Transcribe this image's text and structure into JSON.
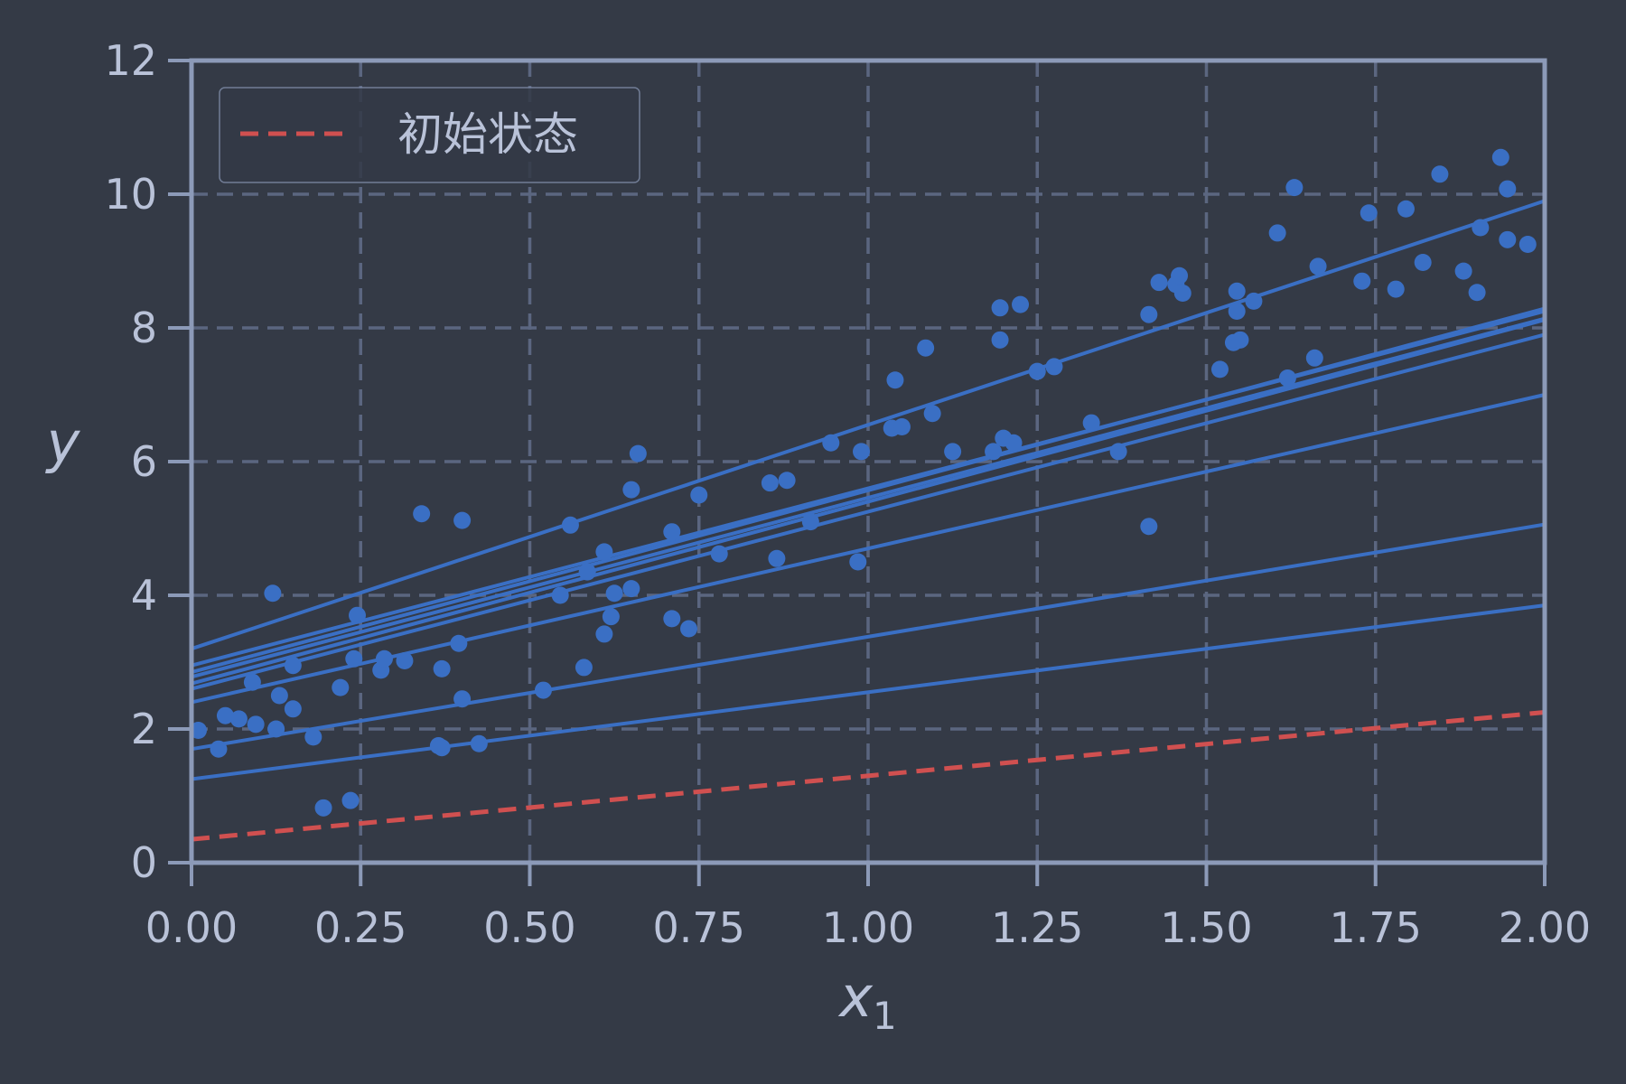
{
  "chart_data": {
    "type": "scatter",
    "title": "",
    "xlabel": "x",
    "xlabel_subscript": "1",
    "ylabel": "y",
    "xlim": [
      0,
      2
    ],
    "ylim": [
      0,
      12
    ],
    "grid": true,
    "legend_position": "top-left",
    "xticks": [
      "0.00",
      "0.25",
      "0.50",
      "0.75",
      "1.00",
      "1.25",
      "1.50",
      "1.75",
      "2.00"
    ],
    "xtick_values": [
      0,
      0.25,
      0.5,
      0.75,
      1.0,
      1.25,
      1.5,
      1.75,
      2.0
    ],
    "yticks": [
      "0",
      "2",
      "4",
      "6",
      "8",
      "10",
      "12"
    ],
    "ytick_values": [
      0,
      2,
      4,
      6,
      8,
      10,
      12
    ],
    "initial_line": {
      "name": "初始状态",
      "intercept": 0.35,
      "slope": 0.95
    },
    "iteration_lines": [
      {
        "intercept": 1.25,
        "slope": 1.3
      },
      {
        "intercept": 1.7,
        "slope": 1.68
      },
      {
        "intercept": 2.4,
        "slope": 2.3
      },
      {
        "intercept": 2.6,
        "slope": 2.65
      },
      {
        "intercept": 2.68,
        "slope": 2.72
      },
      {
        "intercept": 2.78,
        "slope": 2.68
      },
      {
        "intercept": 2.85,
        "slope": 2.72
      },
      {
        "intercept": 2.95,
        "slope": 2.65
      },
      {
        "intercept": 3.2,
        "slope": 3.35
      }
    ],
    "points": [
      [
        0.01,
        1.98
      ],
      [
        0.04,
        1.7
      ],
      [
        0.05,
        2.2
      ],
      [
        0.07,
        2.15
      ],
      [
        0.09,
        2.7
      ],
      [
        0.095,
        2.07
      ],
      [
        0.12,
        4.03
      ],
      [
        0.125,
        2.0
      ],
      [
        0.13,
        2.5
      ],
      [
        0.15,
        2.3
      ],
      [
        0.15,
        2.95
      ],
      [
        0.18,
        1.88
      ],
      [
        0.195,
        0.82
      ],
      [
        0.22,
        2.62
      ],
      [
        0.235,
        0.93
      ],
      [
        0.24,
        3.05
      ],
      [
        0.245,
        3.7
      ],
      [
        0.28,
        2.88
      ],
      [
        0.285,
        3.05
      ],
      [
        0.315,
        3.02
      ],
      [
        0.34,
        5.22
      ],
      [
        0.365,
        1.75
      ],
      [
        0.37,
        1.72
      ],
      [
        0.37,
        2.9
      ],
      [
        0.395,
        3.28
      ],
      [
        0.4,
        5.12
      ],
      [
        0.4,
        2.45
      ],
      [
        0.425,
        1.78
      ],
      [
        0.52,
        2.58
      ],
      [
        0.545,
        4.0
      ],
      [
        0.56,
        5.05
      ],
      [
        0.58,
        2.92
      ],
      [
        0.585,
        4.35
      ],
      [
        0.61,
        4.65
      ],
      [
        0.61,
        3.42
      ],
      [
        0.62,
        3.68
      ],
      [
        0.625,
        4.03
      ],
      [
        0.65,
        5.58
      ],
      [
        0.65,
        4.1
      ],
      [
        0.66,
        6.12
      ],
      [
        0.71,
        4.95
      ],
      [
        0.71,
        3.65
      ],
      [
        0.735,
        3.5
      ],
      [
        0.75,
        5.5
      ],
      [
        0.78,
        4.62
      ],
      [
        0.855,
        5.68
      ],
      [
        0.865,
        4.55
      ],
      [
        0.88,
        5.72
      ],
      [
        0.915,
        5.1
      ],
      [
        0.945,
        6.28
      ],
      [
        0.985,
        4.5
      ],
      [
        0.99,
        6.15
      ],
      [
        1.035,
        6.5
      ],
      [
        1.04,
        7.22
      ],
      [
        1.05,
        6.52
      ],
      [
        1.085,
        7.7
      ],
      [
        1.095,
        6.72
      ],
      [
        1.125,
        6.15
      ],
      [
        1.185,
        6.15
      ],
      [
        1.195,
        8.3
      ],
      [
        1.195,
        7.82
      ],
      [
        1.2,
        6.35
      ],
      [
        1.215,
        6.28
      ],
      [
        1.225,
        8.35
      ],
      [
        1.25,
        7.35
      ],
      [
        1.275,
        7.42
      ],
      [
        1.33,
        6.58
      ],
      [
        1.37,
        6.15
      ],
      [
        1.415,
        5.03
      ],
      [
        1.415,
        8.2
      ],
      [
        1.43,
        8.68
      ],
      [
        1.455,
        8.65
      ],
      [
        1.46,
        8.78
      ],
      [
        1.465,
        8.52
      ],
      [
        1.52,
        7.38
      ],
      [
        1.54,
        7.78
      ],
      [
        1.545,
        8.25
      ],
      [
        1.545,
        8.55
      ],
      [
        1.55,
        7.82
      ],
      [
        1.57,
        8.4
      ],
      [
        1.605,
        9.42
      ],
      [
        1.62,
        7.25
      ],
      [
        1.63,
        10.1
      ],
      [
        1.66,
        7.55
      ],
      [
        1.665,
        8.92
      ],
      [
        1.73,
        8.7
      ],
      [
        1.74,
        9.72
      ],
      [
        1.78,
        8.58
      ],
      [
        1.795,
        9.78
      ],
      [
        1.82,
        8.98
      ],
      [
        1.845,
        10.3
      ],
      [
        1.88,
        8.85
      ],
      [
        1.9,
        8.53
      ],
      [
        1.905,
        9.5
      ],
      [
        1.935,
        10.55
      ],
      [
        1.945,
        9.32
      ],
      [
        1.945,
        10.08
      ],
      [
        1.975,
        9.25
      ]
    ]
  },
  "colors": {
    "background": "#343a46",
    "axes_frame": "#8c9ab8",
    "grid": "#5b6680",
    "tick_text": "#b9c2d8",
    "series_blue": "#3a6fc4",
    "initial_red": "#d05050",
    "legend_border": "#8c9ab8"
  }
}
